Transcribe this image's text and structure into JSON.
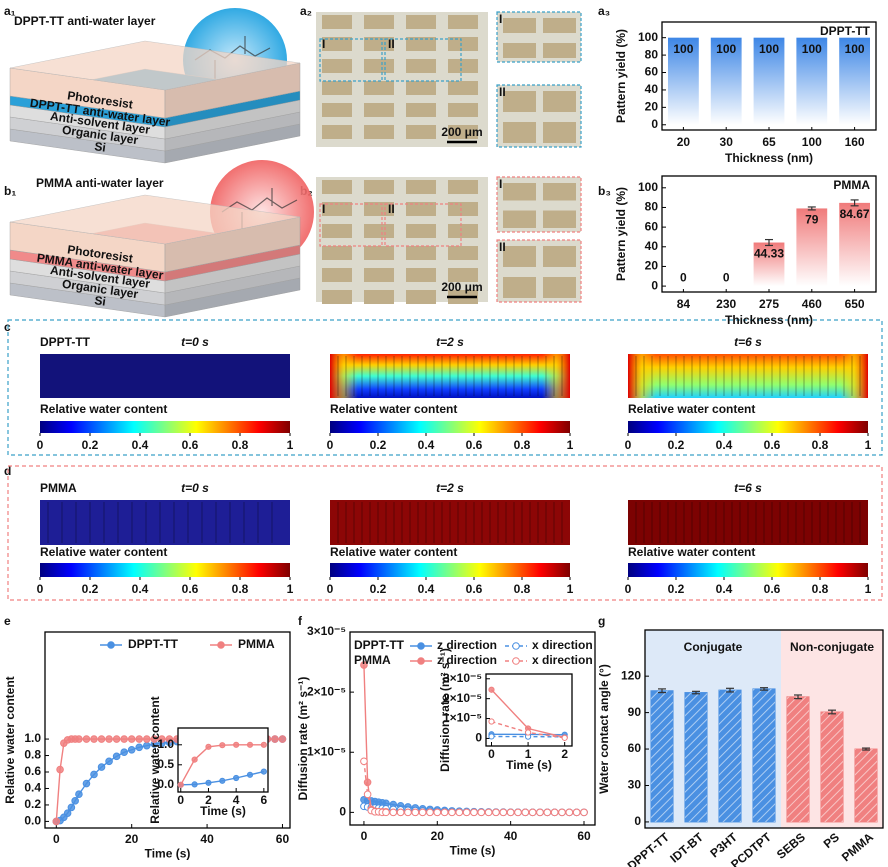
{
  "panel_labels": [
    "a₁",
    "a₂",
    "a₃",
    "b₁",
    "b₂",
    "b₃",
    "c",
    "d",
    "e",
    "f",
    "g"
  ],
  "schematics": [
    {
      "title": "DPPT-TT anti-water layer",
      "layers": [
        "Photoresist",
        "DPPT-TT anti-water layer",
        "Anti-solvent layer",
        "Organic layer",
        "Si"
      ]
    },
    {
      "title": "PMMA anti-water layer",
      "layers": [
        "Photoresist",
        "PMMA anti-water layer",
        "Anti-solvent layer",
        "Organic layer",
        "Si"
      ]
    }
  ],
  "micrographs": [
    {
      "regions": [
        "I",
        "II"
      ],
      "scale_bar": "200 μm"
    },
    {
      "regions": [
        "I",
        "II"
      ],
      "scale_bar": "200 μm"
    }
  ],
  "simulations": [
    {
      "material": "DPPT-TT",
      "times": [
        "t=0 s",
        "t=2 s",
        "t=6 s"
      ],
      "colorbar_label": "Relative water content",
      "colorbar_range": [
        0,
        1
      ],
      "colorbar_ticks": [
        0,
        0.2,
        0.4,
        0.6,
        0.8,
        1
      ]
    },
    {
      "material": "PMMA",
      "times": [
        "t=0 s",
        "t=2 s",
        "t=6 s"
      ],
      "colorbar_label": "Relative water content",
      "colorbar_range": [
        0,
        1
      ],
      "colorbar_ticks": [
        0,
        0.2,
        0.4,
        0.6,
        0.8,
        1
      ]
    }
  ],
  "chart_data": [
    {
      "type": "bar",
      "label": "DPPT-TT",
      "x_label": "Thickness (nm)",
      "y_label": "Pattern yield (%)",
      "categories": [
        "20",
        "30",
        "65",
        "100",
        "160"
      ],
      "values": [
        100,
        100,
        100,
        100,
        100
      ],
      "color": "#3d86e6",
      "fill_style": "gradient",
      "ylim": [
        -6,
        118
      ],
      "yticks": [
        0,
        20,
        40,
        60,
        80,
        100
      ]
    },
    {
      "type": "bar",
      "label": "PMMA",
      "x_label": "Thickness (nm)",
      "y_label": "Pattern yield (%)",
      "categories": [
        "84",
        "230",
        "275",
        "460",
        "650"
      ],
      "values": [
        0,
        0,
        44.33,
        79,
        84.67
      ],
      "errors": [
        0,
        0,
        3,
        1.5,
        3
      ],
      "color": "#f07a7a",
      "fill_style": "gradient",
      "ylim": [
        -6,
        112
      ],
      "yticks": [
        0,
        20,
        40,
        60,
        80,
        100
      ]
    },
    {
      "type": "line",
      "x_label": "Time (s)",
      "y_label": "Relative water content",
      "x": [
        0,
        1,
        2,
        3,
        4,
        5,
        6,
        8,
        10,
        12,
        14,
        16,
        18,
        20,
        22,
        24,
        26,
        28,
        30,
        32,
        34,
        36,
        38,
        40,
        42,
        44,
        46,
        48,
        50,
        52,
        54,
        56,
        58,
        60
      ],
      "series": [
        {
          "name": "DPPT-TT",
          "color": "#4a90e2",
          "line_style": "solid",
          "marker_fill": "filled",
          "values": [
            0,
            0.01,
            0.05,
            0.1,
            0.17,
            0.25,
            0.33,
            0.46,
            0.57,
            0.66,
            0.73,
            0.79,
            0.84,
            0.87,
            0.9,
            0.92,
            0.94,
            0.95,
            0.96,
            0.97,
            0.975,
            0.98,
            0.985,
            0.99,
            0.99,
            0.992,
            0.995,
            0.996,
            0.998,
            0.998,
            0.999,
            1,
            1,
            1
          ]
        },
        {
          "name": "PMMA",
          "color": "#f08080",
          "line_style": "solid",
          "marker_fill": "filled",
          "values": [
            0,
            0.63,
            0.95,
            0.99,
            1,
            1,
            1,
            1,
            1,
            1,
            1,
            1,
            1,
            1,
            1,
            1,
            1,
            1,
            1,
            1,
            1,
            1,
            1,
            1,
            1,
            1,
            1,
            1,
            1,
            1,
            1,
            1,
            1,
            1
          ]
        }
      ],
      "xlim": [
        -3,
        62
      ],
      "ylim": [
        -0.08,
        2.3
      ],
      "xticks": [
        0,
        20,
        40,
        60
      ],
      "yticks": [
        {
          "value": 0,
          "label": "0.0"
        },
        {
          "value": 0.2,
          "label": "0.2"
        },
        {
          "value": 0.4,
          "label": "0.4"
        },
        {
          "value": 0.6,
          "label": "0.6"
        },
        {
          "value": 0.8,
          "label": "0.8"
        },
        {
          "value": 1,
          "label": "1.0"
        }
      ],
      "legend": "top",
      "inset": {
        "x_label": "Time (s)",
        "y_label": "Relative water content",
        "xlim": [
          -0.2,
          6.3
        ],
        "ylim": [
          -0.18,
          1.42
        ],
        "xticks": [
          0,
          2,
          4,
          6
        ],
        "yticks": [
          {
            "value": 0,
            "label": "0.0"
          },
          {
            "value": 0.5,
            "label": "0.5"
          },
          {
            "value": 1,
            "label": "1.0"
          }
        ]
      }
    },
    {
      "type": "line",
      "x_label": "Time (s)",
      "y_label": "Diffusion rate (m² s⁻¹)",
      "x": [
        0,
        1,
        2,
        3,
        4,
        5,
        6,
        8,
        10,
        12,
        14,
        16,
        18,
        20,
        22,
        24,
        26,
        28,
        30,
        32,
        34,
        36,
        38,
        40,
        42,
        44,
        46,
        48,
        50,
        52,
        54,
        56,
        58,
        60
      ],
      "series": [
        {
          "name": "z direction",
          "group": "DPPT-TT",
          "color": "#4a90e2",
          "line_style": "solid",
          "marker_fill": "filled",
          "values": [
            2.1e-06,
            2e-06,
            1.9e-06,
            1.8e-06,
            1.7e-06,
            1.6e-06,
            1.5e-06,
            1.3e-06,
            1.1e-06,
            9e-07,
            7.5e-07,
            6e-07,
            5e-07,
            4e-07,
            3.2e-07,
            2.5e-07,
            2e-07,
            1.6e-07,
            1.2e-07,
            1e-07,
            8e-08,
            6e-08,
            5e-08,
            4e-08,
            3e-08,
            2e-08,
            2e-08,
            1e-08,
            1e-08,
            1e-08,
            0,
            0,
            0,
            0
          ]
        },
        {
          "name": "x direction",
          "group": "DPPT-TT",
          "color": "#4a90e2",
          "line_style": "dashed",
          "marker_fill": "open",
          "values": [
            1e-06,
            9e-07,
            8e-07,
            7.5e-07,
            7e-07,
            6.5e-07,
            6e-07,
            5e-07,
            4.2e-07,
            3.5e-07,
            3e-07,
            2.5e-07,
            2e-07,
            1.6e-07,
            1.3e-07,
            1e-07,
            8e-08,
            6e-08,
            5e-08,
            4e-08,
            3e-08,
            2e-08,
            2e-08,
            1e-08,
            1e-08,
            1e-08,
            0,
            0,
            0,
            0,
            0,
            0,
            0,
            0
          ]
        },
        {
          "name": "z direction",
          "group": "PMMA",
          "color": "#f08080",
          "line_style": "solid",
          "marker_fill": "filled",
          "values": [
            2.45e-05,
            5e-06,
            5e-07,
            2e-07,
            1e-07,
            1e-07,
            1e-07,
            0,
            0,
            0,
            0,
            0,
            0,
            0,
            0,
            0,
            0,
            0,
            0,
            0,
            0,
            0,
            0,
            0,
            0,
            0,
            0,
            0,
            0,
            0,
            0,
            0,
            0,
            0
          ]
        },
        {
          "name": "x direction",
          "group": "PMMA",
          "color": "#f08080",
          "line_style": "dashed",
          "marker_fill": "open",
          "values": [
            8.5e-06,
            3e-06,
            3e-07,
            1e-07,
            1e-07,
            0,
            0,
            0,
            0,
            0,
            0,
            0,
            0,
            0,
            0,
            0,
            0,
            0,
            0,
            0,
            0,
            0,
            0,
            0,
            0,
            0,
            0,
            0,
            0,
            0,
            0,
            0,
            0,
            0
          ]
        }
      ],
      "xlim": [
        -3.8,
        63
      ],
      "ylim": [
        -2.1e-06,
        3e-05
      ],
      "xticks": [
        0,
        20,
        40,
        60
      ],
      "yticks": [
        0,
        {
          "value": 1e-05,
          "label": "1×10⁻⁵"
        },
        {
          "value": 2e-05,
          "label": "2×10⁻⁵"
        },
        {
          "value": 3e-05,
          "label": "3×10⁻⁵"
        }
      ],
      "legend": "top-left",
      "inset": {
        "x_label": "Time (s)",
        "y_label": "Diffusion rate (m² s⁻¹)",
        "xlim": [
          -0.15,
          2.2
        ],
        "ylim": [
          -3.8e-06,
          3.24e-05
        ],
        "xticks": [
          0,
          1,
          2
        ],
        "yticks": [
          0,
          {
            "value": 1e-05,
            "label": "1×10⁻⁵"
          },
          {
            "value": 2e-05,
            "label": "2×10⁻⁵"
          },
          {
            "value": 3e-05,
            "label": "3×10⁻⁵"
          }
        ]
      }
    },
    {
      "type": "bar",
      "y_label": "Water contact angle (°)",
      "categories": [
        "DPPT-TT",
        "IDT-BT",
        "P3HT",
        "PCDTPT",
        "SEBS",
        "PS",
        "PMMA"
      ],
      "values": [
        108,
        106.5,
        108.5,
        109.5,
        103,
        90.5,
        60
      ],
      "errors": [
        1.5,
        1,
        1.5,
        1,
        1.5,
        1.5,
        0.8
      ],
      "colors": [
        "#4a90e2",
        "#4a90e2",
        "#4a90e2",
        "#4a90e2",
        "#f08080",
        "#f08080",
        "#f08080"
      ],
      "fill_style": "hatched",
      "groups": [
        {
          "label": "Conjugate",
          "color": "#dde9f8",
          "members": [
            "DPPT-TT",
            "IDT-BT",
            "P3HT",
            "PCDTPT"
          ]
        },
        {
          "label": "Non-conjugate",
          "color": "#fde4e4",
          "members": [
            "SEBS",
            "PS",
            "PMMA"
          ]
        }
      ],
      "ylim": [
        -5,
        158
      ],
      "yticks": [
        0,
        30,
        60,
        90,
        120
      ]
    }
  ]
}
